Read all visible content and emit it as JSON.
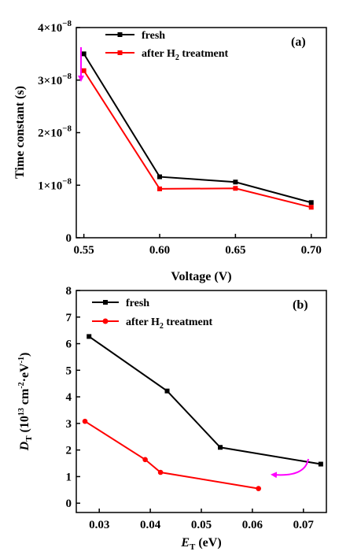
{
  "chart_data": [
    {
      "type": "line",
      "panel_label": "(a)",
      "xlabel": "Voltage (V)",
      "ylabel": "Time constant (s)",
      "xlim": [
        0.545,
        0.71
      ],
      "ylim": [
        0,
        4e-08
      ],
      "xticks": [
        0.55,
        0.6,
        0.65,
        0.7
      ],
      "xtick_labels": [
        "0.55",
        "0.60",
        "0.65",
        "0.70"
      ],
      "yticks": [
        0,
        1e-08,
        2e-08,
        3e-08,
        4e-08
      ],
      "ytick_labels": [
        {
          "base": "0",
          "exp": ""
        },
        {
          "base": "1×10",
          "exp": "−8"
        },
        {
          "base": "2×10",
          "exp": "−8"
        },
        {
          "base": "3×10",
          "exp": "−8"
        },
        {
          "base": "4×10",
          "exp": "−8"
        }
      ],
      "legend_placement": "top",
      "series": [
        {
          "name": "fresh",
          "color": "#000000",
          "marker": "square",
          "x": [
            0.55,
            0.6,
            0.65,
            0.7
          ],
          "y": [
            3.5e-08,
            1.16e-08,
            1.06e-08,
            6.7e-09
          ]
        },
        {
          "name": "after H2 treatment",
          "name_parts": {
            "pre": "after H",
            "sub": "2",
            "post": " treatment"
          },
          "color": "#ff0000",
          "marker": "square",
          "x": [
            0.55,
            0.6,
            0.65,
            0.7
          ],
          "y": [
            3.18e-08,
            9.3e-09,
            9.4e-09,
            5.8e-09
          ]
        }
      ],
      "annotations": [
        {
          "type": "arrow",
          "direction": "down",
          "color": "#ff00ff"
        }
      ]
    },
    {
      "type": "line",
      "panel_label": "(b)",
      "xlabel": {
        "main": "E",
        "sub": "T",
        "post": " (eV)"
      },
      "ylabel": {
        "main": "D",
        "sub": "T",
        "mid": " (10",
        "sup1": "13",
        "mid2": " cm",
        "sup2": "-2",
        "mid3": "·eV",
        "sup3": "-1",
        "post": ")"
      },
      "xlim": [
        0.0255,
        0.0745
      ],
      "ylim": [
        -0.35,
        8
      ],
      "xticks": [
        0.03,
        0.04,
        0.05,
        0.06,
        0.07
      ],
      "xtick_labels": [
        "0.03",
        "0.04",
        "0.05",
        "0.06",
        "0.07"
      ],
      "yticks": [
        0,
        1,
        2,
        3,
        4,
        5,
        6,
        7,
        8
      ],
      "ytick_labels": [
        "0",
        "1",
        "2",
        "3",
        "4",
        "5",
        "6",
        "7",
        "8"
      ],
      "legend_placement": "top-left",
      "series": [
        {
          "name": "fresh",
          "color": "#000000",
          "marker": "square",
          "x": [
            0.028,
            0.0433,
            0.0537,
            0.0734
          ],
          "y": [
            6.27,
            4.22,
            2.1,
            1.47
          ]
        },
        {
          "name": "after H2 treatment",
          "name_parts": {
            "pre": "after H",
            "sub": "2",
            "post": " treatment"
          },
          "color": "#ff0000",
          "marker": "circle",
          "x": [
            0.0272,
            0.039,
            0.042,
            0.0612
          ],
          "y": [
            3.08,
            1.64,
            1.16,
            0.55
          ]
        }
      ],
      "annotations": [
        {
          "type": "curved-arrow",
          "direction": "left",
          "color": "#ff00ff"
        }
      ]
    }
  ]
}
